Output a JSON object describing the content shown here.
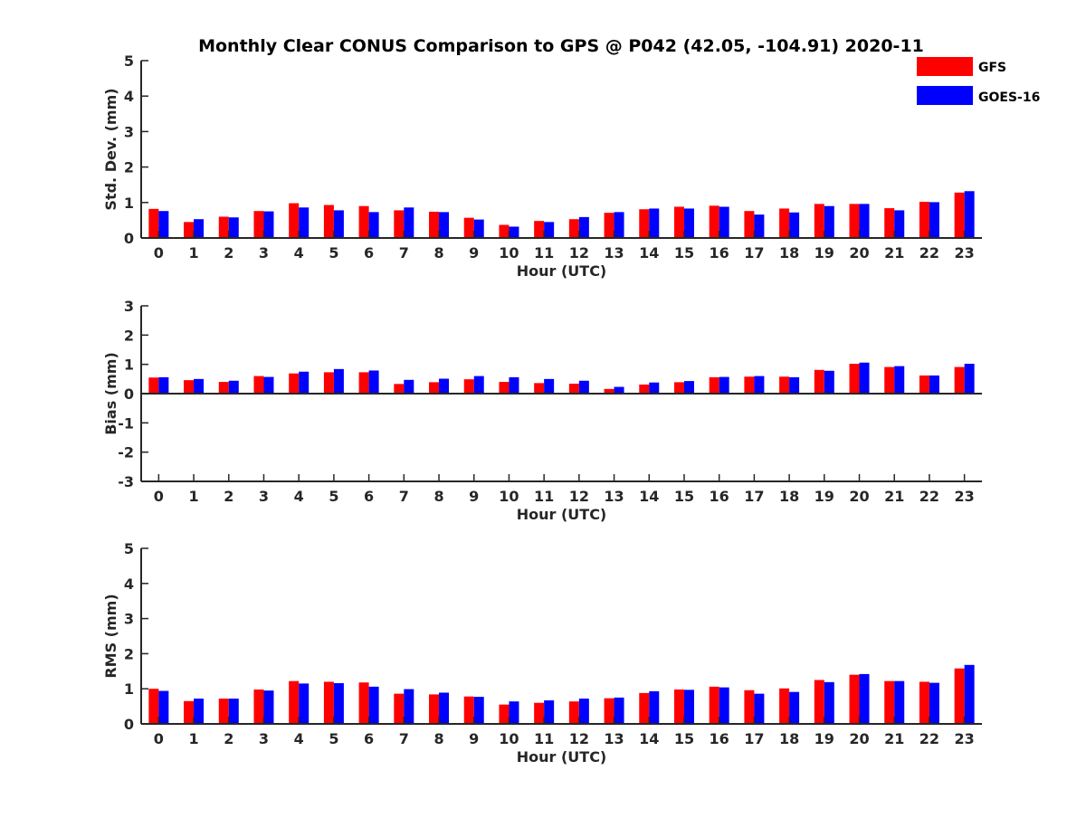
{
  "title": "Monthly Clear CONUS Comparison to GPS @ P042 (42.05, -104.91) 2020-11",
  "legend": [
    {
      "name": "GFS",
      "color": "#ff0000"
    },
    {
      "name": "GOES-16",
      "color": "#0000ff"
    }
  ],
  "chart_data": [
    {
      "type": "bar",
      "xlabel": "Hour (UTC)",
      "ylabel": "Std. Dev. (mm)",
      "ylim": [
        0,
        5
      ],
      "yticks": [
        "0",
        "1",
        "2",
        "3",
        "4",
        "5"
      ],
      "categories": [
        "0",
        "1",
        "2",
        "3",
        "4",
        "5",
        "6",
        "7",
        "8",
        "9",
        "10",
        "11",
        "12",
        "13",
        "14",
        "15",
        "16",
        "17",
        "18",
        "19",
        "20",
        "21",
        "22",
        "23"
      ],
      "series": [
        {
          "name": "GFS",
          "color": "#ff0000",
          "values": [
            0.82,
            0.45,
            0.6,
            0.76,
            0.98,
            0.93,
            0.9,
            0.78,
            0.74,
            0.57,
            0.37,
            0.48,
            0.53,
            0.71,
            0.81,
            0.88,
            0.91,
            0.76,
            0.83,
            0.96,
            0.96,
            0.84,
            1.02,
            1.28
          ]
        },
        {
          "name": "GOES-16",
          "color": "#0000ff",
          "values": [
            0.76,
            0.53,
            0.58,
            0.75,
            0.86,
            0.78,
            0.73,
            0.86,
            0.73,
            0.52,
            0.32,
            0.45,
            0.59,
            0.73,
            0.83,
            0.83,
            0.88,
            0.66,
            0.72,
            0.9,
            0.96,
            0.78,
            1.01,
            1.32
          ]
        }
      ]
    },
    {
      "type": "bar",
      "xlabel": "Hour (UTC)",
      "ylabel": "Bias (mm)",
      "ylim": [
        -3,
        3
      ],
      "yticks": [
        "-3",
        "-2",
        "-1",
        "0",
        "1",
        "2",
        "3"
      ],
      "categories": [
        "0",
        "1",
        "2",
        "3",
        "4",
        "5",
        "6",
        "7",
        "8",
        "9",
        "10",
        "11",
        "12",
        "13",
        "14",
        "15",
        "16",
        "17",
        "18",
        "19",
        "20",
        "21",
        "22",
        "23"
      ],
      "series": [
        {
          "name": "GFS",
          "color": "#ff0000",
          "values": [
            0.55,
            0.46,
            0.4,
            0.6,
            0.69,
            0.73,
            0.73,
            0.33,
            0.39,
            0.49,
            0.4,
            0.36,
            0.34,
            0.16,
            0.31,
            0.39,
            0.56,
            0.58,
            0.58,
            0.81,
            1.02,
            0.91,
            0.62,
            0.91
          ]
        },
        {
          "name": "GOES-16",
          "color": "#0000ff",
          "values": [
            0.56,
            0.5,
            0.44,
            0.57,
            0.75,
            0.84,
            0.79,
            0.47,
            0.51,
            0.6,
            0.56,
            0.5,
            0.44,
            0.23,
            0.38,
            0.43,
            0.57,
            0.6,
            0.56,
            0.78,
            1.06,
            0.94,
            0.62,
            1.02
          ]
        }
      ]
    },
    {
      "type": "bar",
      "xlabel": "Hour (UTC)",
      "ylabel": "RMS (mm)",
      "ylim": [
        0,
        5
      ],
      "yticks": [
        "0",
        "1",
        "2",
        "3",
        "4",
        "5"
      ],
      "categories": [
        "0",
        "1",
        "2",
        "3",
        "4",
        "5",
        "6",
        "7",
        "8",
        "9",
        "10",
        "11",
        "12",
        "13",
        "14",
        "15",
        "16",
        "17",
        "18",
        "19",
        "20",
        "21",
        "22",
        "23"
      ],
      "series": [
        {
          "name": "GFS",
          "color": "#ff0000",
          "values": [
            1.0,
            0.65,
            0.72,
            0.98,
            1.22,
            1.2,
            1.18,
            0.86,
            0.84,
            0.78,
            0.55,
            0.6,
            0.64,
            0.73,
            0.88,
            0.98,
            1.06,
            0.96,
            1.01,
            1.25,
            1.4,
            1.22,
            1.2,
            1.58
          ]
        },
        {
          "name": "GOES-16",
          "color": "#0000ff",
          "values": [
            0.94,
            0.72,
            0.72,
            0.95,
            1.15,
            1.16,
            1.06,
            0.99,
            0.89,
            0.77,
            0.64,
            0.67,
            0.72,
            0.75,
            0.93,
            0.97,
            1.04,
            0.86,
            0.91,
            1.19,
            1.42,
            1.22,
            1.17,
            1.68
          ]
        }
      ]
    }
  ]
}
